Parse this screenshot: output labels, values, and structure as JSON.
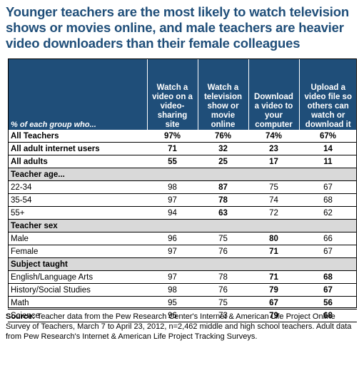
{
  "title": "Younger teachers are the most likely to watch television shows or movies online, and male teachers are heavier video downloaders than their female colleagues",
  "chart_data": {
    "type": "table",
    "row_header_label": "% of each group who...",
    "columns": [
      "Watch a video on a video-sharing site",
      "Watch a television show or movie online",
      "Download a video to your computer",
      "Upload a video file so others can watch or download it"
    ],
    "rows": [
      {
        "label": "All Teachers",
        "values": [
          "97%",
          "76%",
          "74%",
          "67%"
        ],
        "bold_row": true
      },
      {
        "label": "All adult internet users",
        "values": [
          "71",
          "32",
          "23",
          "14"
        ],
        "bold_row": true
      },
      {
        "label": "All adults",
        "values": [
          "55",
          "25",
          "17",
          "11"
        ],
        "bold_row": true
      },
      {
        "label": "Teacher age...",
        "section": true
      },
      {
        "label": "22-34",
        "values": [
          "98",
          "87",
          "75",
          "67"
        ],
        "bold_cols": [
          1
        ]
      },
      {
        "label": "35-54",
        "values": [
          "97",
          "78",
          "74",
          "68"
        ],
        "bold_cols": [
          1
        ]
      },
      {
        "label": "55+",
        "values": [
          "94",
          "63",
          "72",
          "62"
        ],
        "bold_cols": [
          1
        ]
      },
      {
        "label": "Teacher sex",
        "section": true
      },
      {
        "label": "Male",
        "values": [
          "96",
          "75",
          "80",
          "66"
        ],
        "bold_cols": [
          2
        ]
      },
      {
        "label": "Female",
        "values": [
          "97",
          "76",
          "71",
          "67"
        ],
        "bold_cols": [
          2
        ]
      },
      {
        "label": "Subject taught",
        "section": true
      },
      {
        "label": "English/Language Arts",
        "values": [
          "97",
          "78",
          "71",
          "68"
        ],
        "bold_cols": [
          2,
          3
        ]
      },
      {
        "label": "History/Social Studies",
        "values": [
          "98",
          "76",
          "79",
          "67"
        ],
        "bold_cols": [
          2,
          3
        ]
      },
      {
        "label": "Math",
        "values": [
          "95",
          "75",
          "67",
          "56"
        ],
        "bold_cols": [
          2,
          3
        ]
      },
      {
        "label": "Science",
        "values": [
          "96",
          "73",
          "79",
          "68"
        ],
        "bold_cols": [
          2,
          3
        ]
      }
    ]
  },
  "source": {
    "label": "Source:",
    "text": " Teacher data from the Pew Research Center's Internet & American Life Project Online Survey of Teachers, March 7 to April 23, 2012, n=2,462 middle and high school teachers.  Adult data from Pew Research's Internet & American Life Project Tracking Surveys."
  },
  "colors": {
    "title": "#1f4e79",
    "header_bg": "#1f4e79",
    "section_bg": "#d9d9d9"
  }
}
